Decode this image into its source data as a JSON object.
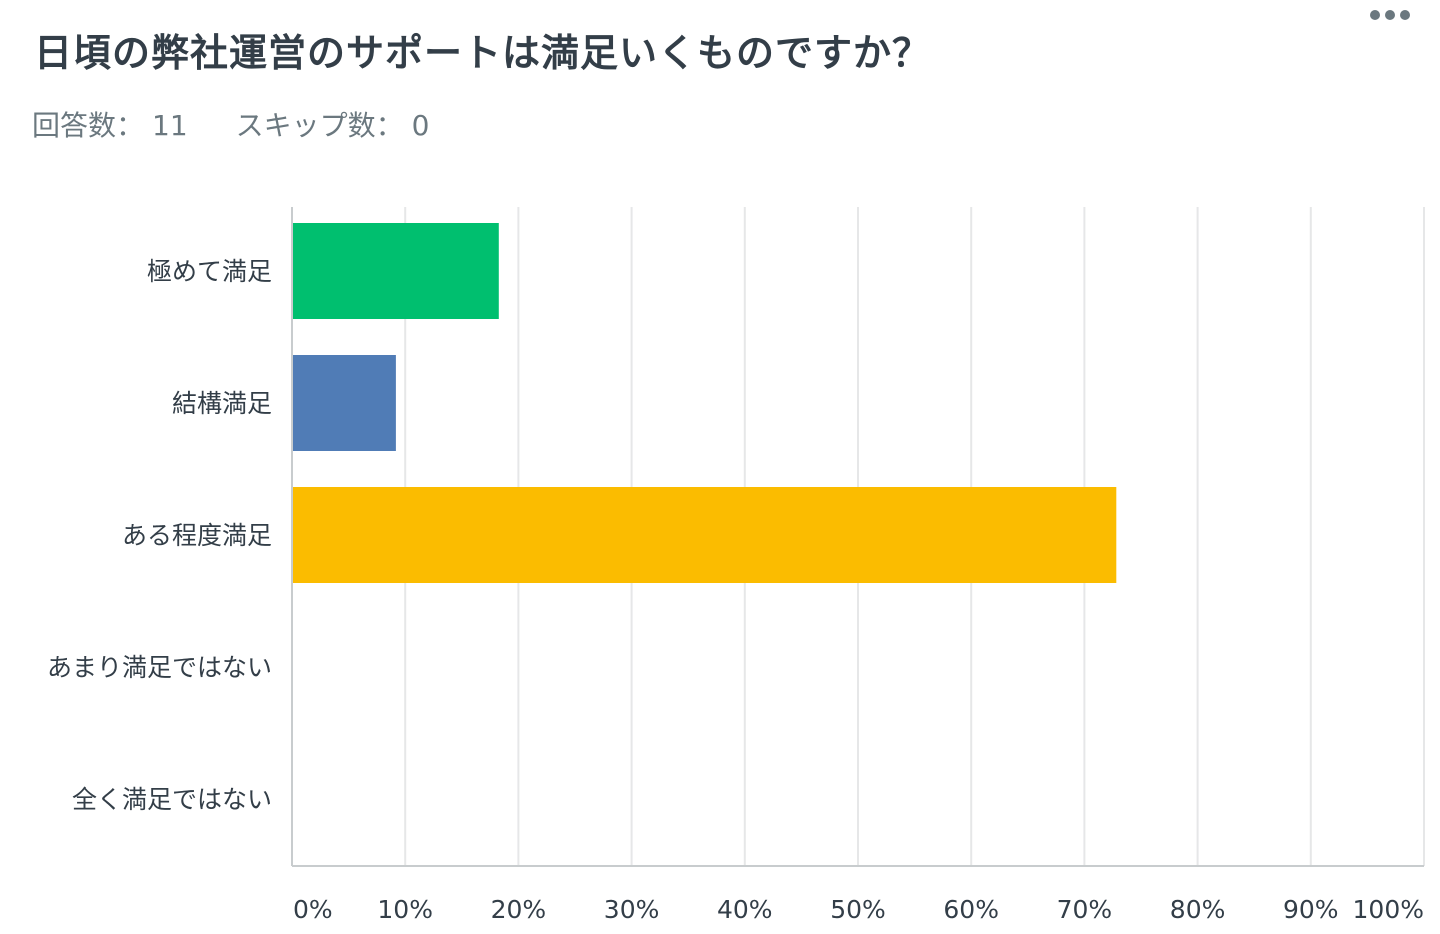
{
  "question": {
    "title": "日頃の弊社運営のサポートは満足いくものですか？",
    "responses_label": "回答数：",
    "responses": "11",
    "skipped_label": "スキップ数：",
    "skipped": "0",
    "more_icon": "more-horizontal-icon"
  },
  "chart_data": {
    "type": "bar",
    "orientation": "horizontal",
    "title": "日頃の弊社運営のサポートは満足いくものですか？",
    "categories": [
      "極めて満足",
      "結構満足",
      "ある程度満足",
      "あまり満足ではない",
      "全く満足ではない"
    ],
    "values": [
      18.18,
      9.09,
      72.73,
      0,
      0
    ],
    "colors": [
      "#00bf6f",
      "#507cb6",
      "#fbbc00",
      "#6bc8cd",
      "#f05b24"
    ],
    "xlim": [
      0,
      100
    ],
    "xticks": [
      "0%",
      "10%",
      "20%",
      "30%",
      "40%",
      "50%",
      "60%",
      "70%",
      "80%",
      "90%",
      "100%"
    ],
    "grid": true,
    "xlabel": "",
    "ylabel": ""
  }
}
